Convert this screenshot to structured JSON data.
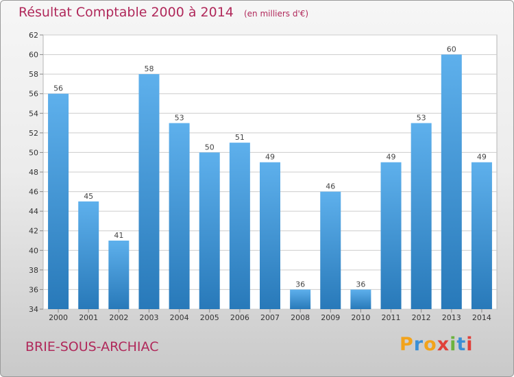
{
  "chart_data": {
    "type": "bar",
    "title": "Résultat Comptable 2000 à 2014",
    "subtitle": "(en milliers d'€)",
    "categories": [
      "2000",
      "2001",
      "2002",
      "2003",
      "2004",
      "2005",
      "2006",
      "2007",
      "2008",
      "2009",
      "2010",
      "2011",
      "2012",
      "2013",
      "2014"
    ],
    "values": [
      56,
      45,
      41,
      58,
      53,
      50,
      51,
      49,
      36,
      46,
      36,
      49,
      53,
      60,
      49
    ],
    "ylim": [
      34,
      62
    ],
    "yticks": [
      34,
      36,
      38,
      40,
      42,
      44,
      46,
      48,
      50,
      52,
      54,
      56,
      58,
      60,
      62
    ],
    "grid": true,
    "xlabel": "",
    "ylabel": ""
  },
  "footer": {
    "commune": "BRIE-SOUS-ARCHIAC",
    "brand": "Proxiti"
  },
  "colors": {
    "title": "#b0285a",
    "bar_light": "#5eb0ec",
    "bar_dark": "#2879b9",
    "grid": "#cccccc"
  }
}
